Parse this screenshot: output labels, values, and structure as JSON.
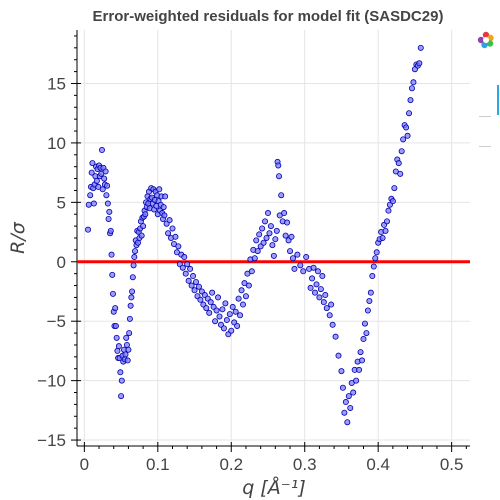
{
  "chart_data": {
    "type": "scatter",
    "title": "Error-weighted residuals for model fit (SASDC29)",
    "xlabel": "q [Å⁻¹]",
    "ylabel": "R/σ",
    "xlim": [
      -0.01,
      0.525
    ],
    "ylim": [
      -15.5,
      19.5
    ],
    "xticks": [
      0,
      0.1,
      0.2,
      0.3,
      0.4,
      0.5
    ],
    "xtick_labels": [
      "0",
      "0.1",
      "0.2",
      "0.3",
      "0.4",
      "0.5"
    ],
    "yticks": [
      -15,
      -10,
      -5,
      0,
      5,
      10,
      15
    ],
    "ytick_labels": [
      "−15",
      "−10",
      "−5",
      "0",
      "5",
      "10",
      "15"
    ],
    "grid": true,
    "reference_line": {
      "y": 0,
      "color": "#ff0000"
    },
    "marker": {
      "fill": "#7b7bff",
      "stroke": "#0000aa"
    },
    "points": [
      [
        0.005,
        2.7
      ],
      [
        0.006,
        4.8
      ],
      [
        0.008,
        5.6
      ],
      [
        0.009,
        6.3
      ],
      [
        0.01,
        7.5
      ],
      [
        0.011,
        8.3
      ],
      [
        0.012,
        6.2
      ],
      [
        0.013,
        4.9
      ],
      [
        0.014,
        6.5
      ],
      [
        0.015,
        7.2
      ],
      [
        0.016,
        8.0
      ],
      [
        0.017,
        6.8
      ],
      [
        0.018,
        7.8
      ],
      [
        0.019,
        6.3
      ],
      [
        0.02,
        8.1
      ],
      [
        0.021,
        7.2
      ],
      [
        0.022,
        7.9
      ],
      [
        0.023,
        7.4
      ],
      [
        0.024,
        9.4
      ],
      [
        0.025,
        6.1
      ],
      [
        0.026,
        7.9
      ],
      [
        0.027,
        7.0
      ],
      [
        0.028,
        6.5
      ],
      [
        0.029,
        7.6
      ],
      [
        0.03,
        5.6
      ],
      [
        0.031,
        6.4
      ],
      [
        0.032,
        4.9
      ],
      [
        0.033,
        3.6
      ],
      [
        0.034,
        4.2
      ],
      [
        0.035,
        2.4
      ],
      [
        0.036,
        2.6
      ],
      [
        0.037,
        0.6
      ],
      [
        0.038,
        -1.1
      ],
      [
        0.039,
        -2.7
      ],
      [
        0.04,
        -4.2
      ],
      [
        0.041,
        -5.4
      ],
      [
        0.042,
        -3.9
      ],
      [
        0.043,
        -5.4
      ],
      [
        0.044,
        -6.4
      ],
      [
        0.045,
        -7.5
      ],
      [
        0.046,
        -8.1
      ],
      [
        0.047,
        -7.1
      ],
      [
        0.048,
        -8.1
      ],
      [
        0.049,
        -9.3
      ],
      [
        0.05,
        -11.3
      ],
      [
        0.051,
        -10.0
      ],
      [
        0.052,
        -7.9
      ],
      [
        0.053,
        -8.4
      ],
      [
        0.054,
        -7.4
      ],
      [
        0.055,
        -8.2
      ],
      [
        0.056,
        -7.8
      ],
      [
        0.057,
        -6.4
      ],
      [
        0.058,
        -7.0
      ],
      [
        0.059,
        -8.3
      ],
      [
        0.06,
        -7.4
      ],
      [
        0.061,
        -6.0
      ],
      [
        0.062,
        -4.8
      ],
      [
        0.063,
        -3.7
      ],
      [
        0.064,
        -3.0
      ],
      [
        0.065,
        -2.5
      ],
      [
        0.066,
        -1.3
      ],
      [
        0.067,
        -0.3
      ],
      [
        0.068,
        0.4
      ],
      [
        0.069,
        0.9
      ],
      [
        0.07,
        1.8
      ],
      [
        0.071,
        1.4
      ],
      [
        0.072,
        2.6
      ],
      [
        0.073,
        1.6
      ],
      [
        0.074,
        2.5
      ],
      [
        0.075,
        2.0
      ],
      [
        0.076,
        2.8
      ],
      [
        0.077,
        3.4
      ],
      [
        0.078,
        2.2
      ],
      [
        0.079,
        3.7
      ],
      [
        0.08,
        3.0
      ],
      [
        0.081,
        3.8
      ],
      [
        0.082,
        4.3
      ],
      [
        0.083,
        4.0
      ],
      [
        0.084,
        5.0
      ],
      [
        0.085,
        4.6
      ],
      [
        0.086,
        5.5
      ],
      [
        0.087,
        4.9
      ],
      [
        0.088,
        5.9
      ],
      [
        0.089,
        4.5
      ],
      [
        0.09,
        5.3
      ],
      [
        0.091,
        6.2
      ],
      [
        0.092,
        5.4
      ],
      [
        0.093,
        4.9
      ],
      [
        0.094,
        6.1
      ],
      [
        0.095,
        4.4
      ],
      [
        0.096,
        5.2
      ],
      [
        0.097,
        5.9
      ],
      [
        0.098,
        4.7
      ],
      [
        0.099,
        5.6
      ],
      [
        0.1,
        4.0
      ],
      [
        0.101,
        5.1
      ],
      [
        0.102,
        6.1
      ],
      [
        0.103,
        4.3
      ],
      [
        0.104,
        4.8
      ],
      [
        0.105,
        5.5
      ],
      [
        0.106,
        4.1
      ],
      [
        0.107,
        3.6
      ],
      [
        0.108,
        4.6
      ],
      [
        0.109,
        3.9
      ],
      [
        0.11,
        5.5
      ],
      [
        0.112,
        3.2
      ],
      [
        0.114,
        2.4
      ],
      [
        0.116,
        3.5
      ],
      [
        0.118,
        2.0
      ],
      [
        0.12,
        2.8
      ],
      [
        0.122,
        1.5
      ],
      [
        0.124,
        2.1
      ],
      [
        0.126,
        0.8
      ],
      [
        0.128,
        1.3
      ],
      [
        0.13,
        -0.2
      ],
      [
        0.132,
        0.6
      ],
      [
        0.134,
        -0.5
      ],
      [
        0.136,
        0.4
      ],
      [
        0.138,
        -1.0
      ],
      [
        0.14,
        -0.2
      ],
      [
        0.142,
        -1.6
      ],
      [
        0.144,
        -0.6
      ],
      [
        0.146,
        -2.0
      ],
      [
        0.148,
        -1.2
      ],
      [
        0.15,
        -2.4
      ],
      [
        0.152,
        -1.7
      ],
      [
        0.154,
        -2.9
      ],
      [
        0.156,
        -2.1
      ],
      [
        0.158,
        -3.2
      ],
      [
        0.16,
        -2.5
      ],
      [
        0.162,
        -3.6
      ],
      [
        0.164,
        -2.8
      ],
      [
        0.166,
        -3.9
      ],
      [
        0.168,
        -3.1
      ],
      [
        0.17,
        -4.3
      ],
      [
        0.172,
        -3.4
      ],
      [
        0.174,
        -2.6
      ],
      [
        0.176,
        -3.8
      ],
      [
        0.178,
        -5.0
      ],
      [
        0.18,
        -4.1
      ],
      [
        0.182,
        -3.0
      ],
      [
        0.184,
        -4.6
      ],
      [
        0.186,
        -5.3
      ],
      [
        0.188,
        -4.0
      ],
      [
        0.19,
        -5.6
      ],
      [
        0.192,
        -3.5
      ],
      [
        0.194,
        -4.9
      ],
      [
        0.196,
        -6.1
      ],
      [
        0.198,
        -4.4
      ],
      [
        0.2,
        -5.8
      ],
      [
        0.202,
        -3.8
      ],
      [
        0.204,
        -5.1
      ],
      [
        0.206,
        -4.2
      ],
      [
        0.208,
        -5.4
      ],
      [
        0.21,
        -3.1
      ],
      [
        0.212,
        -4.5
      ],
      [
        0.214,
        -2.4
      ],
      [
        0.216,
        -3.6
      ],
      [
        0.218,
        -1.8
      ],
      [
        0.22,
        -2.9
      ],
      [
        0.222,
        -1.0
      ],
      [
        0.224,
        -2.0
      ],
      [
        0.226,
        0.2
      ],
      [
        0.228,
        -0.8
      ],
      [
        0.23,
        1.0
      ],
      [
        0.232,
        0.3
      ],
      [
        0.234,
        1.8
      ],
      [
        0.236,
        0.9
      ],
      [
        0.238,
        2.3
      ],
      [
        0.24,
        1.3
      ],
      [
        0.242,
        2.8
      ],
      [
        0.244,
        1.6
      ],
      [
        0.246,
        3.4
      ],
      [
        0.248,
        2.0
      ],
      [
        0.25,
        4.1
      ],
      [
        0.252,
        2.4
      ],
      [
        0.254,
        3.0
      ],
      [
        0.256,
        1.4
      ],
      [
        0.258,
        0.5
      ],
      [
        0.26,
        1.9
      ],
      [
        0.262,
        2.6
      ],
      [
        0.263,
        8.4
      ],
      [
        0.264,
        8.1
      ],
      [
        0.265,
        7.2
      ],
      [
        0.266,
        3.9
      ],
      [
        0.268,
        5.6
      ],
      [
        0.27,
        3.4
      ],
      [
        0.272,
        4.1
      ],
      [
        0.274,
        2.2
      ],
      [
        0.276,
        3.3
      ],
      [
        0.278,
        1.8
      ],
      [
        0.28,
        0.9
      ],
      [
        0.282,
        2.1
      ],
      [
        0.284,
        0.3
      ],
      [
        0.286,
        -0.6
      ],
      [
        0.29,
        0.6
      ],
      [
        0.294,
        -0.3
      ],
      [
        0.298,
        -0.8
      ],
      [
        0.302,
        0.4
      ],
      [
        0.306,
        -0.6
      ],
      [
        0.308,
        -2.2
      ],
      [
        0.31,
        -1.4
      ],
      [
        0.312,
        -0.5
      ],
      [
        0.314,
        -2.6
      ],
      [
        0.316,
        -1.9
      ],
      [
        0.318,
        -0.8
      ],
      [
        0.32,
        -3.0
      ],
      [
        0.322,
        -2.3
      ],
      [
        0.324,
        -1.2
      ],
      [
        0.326,
        -3.4
      ],
      [
        0.328,
        -2.8
      ],
      [
        0.33,
        -3.9
      ],
      [
        0.334,
        -4.5
      ],
      [
        0.336,
        -3.6
      ],
      [
        0.338,
        -5.3
      ],
      [
        0.342,
        -6.3
      ],
      [
        0.346,
        -7.9
      ],
      [
        0.35,
        -9.2
      ],
      [
        0.352,
        -10.6
      ],
      [
        0.354,
        -12.7
      ],
      [
        0.356,
        -11.8
      ],
      [
        0.358,
        -13.5
      ],
      [
        0.36,
        -11.3
      ],
      [
        0.362,
        -12.3
      ],
      [
        0.364,
        -10.2
      ],
      [
        0.366,
        -11.0
      ],
      [
        0.368,
        -9.1
      ],
      [
        0.37,
        -10.0
      ],
      [
        0.372,
        -8.4
      ],
      [
        0.374,
        -9.1
      ],
      [
        0.376,
        -7.6
      ],
      [
        0.378,
        -8.3
      ],
      [
        0.38,
        -6.5
      ],
      [
        0.382,
        -5.2
      ],
      [
        0.384,
        -6.0
      ],
      [
        0.386,
        -4.1
      ],
      [
        0.388,
        -3.3
      ],
      [
        0.39,
        -2.6
      ],
      [
        0.392,
        -1.2
      ],
      [
        0.394,
        -0.4
      ],
      [
        0.396,
        0.3
      ],
      [
        0.398,
        0.8
      ],
      [
        0.4,
        1.6
      ],
      [
        0.402,
        1.9
      ],
      [
        0.404,
        2.5
      ],
      [
        0.406,
        2.0
      ],
      [
        0.408,
        3.1
      ],
      [
        0.41,
        2.6
      ],
      [
        0.412,
        3.4
      ],
      [
        0.414,
        4.3
      ],
      [
        0.416,
        4.8
      ],
      [
        0.418,
        5.3
      ],
      [
        0.42,
        5.1
      ],
      [
        0.422,
        6.2
      ],
      [
        0.424,
        7.6
      ],
      [
        0.426,
        8.6
      ],
      [
        0.428,
        8.3
      ],
      [
        0.43,
        7.4
      ],
      [
        0.432,
        9.3
      ],
      [
        0.434,
        10.3
      ],
      [
        0.436,
        11.5
      ],
      [
        0.438,
        11.3
      ],
      [
        0.44,
        10.6
      ],
      [
        0.442,
        12.5
      ],
      [
        0.444,
        13.6
      ],
      [
        0.446,
        14.6
      ],
      [
        0.448,
        15.1
      ],
      [
        0.45,
        16.2
      ],
      [
        0.452,
        16.6
      ],
      [
        0.454,
        16.5
      ],
      [
        0.456,
        16.7
      ],
      [
        0.458,
        18.0
      ]
    ]
  },
  "toolbar": {
    "logo": "bokeh-logo-icon",
    "tools": [
      "pan-tool-icon",
      "zoom-tool-icon",
      "reset-tool-icon"
    ]
  }
}
